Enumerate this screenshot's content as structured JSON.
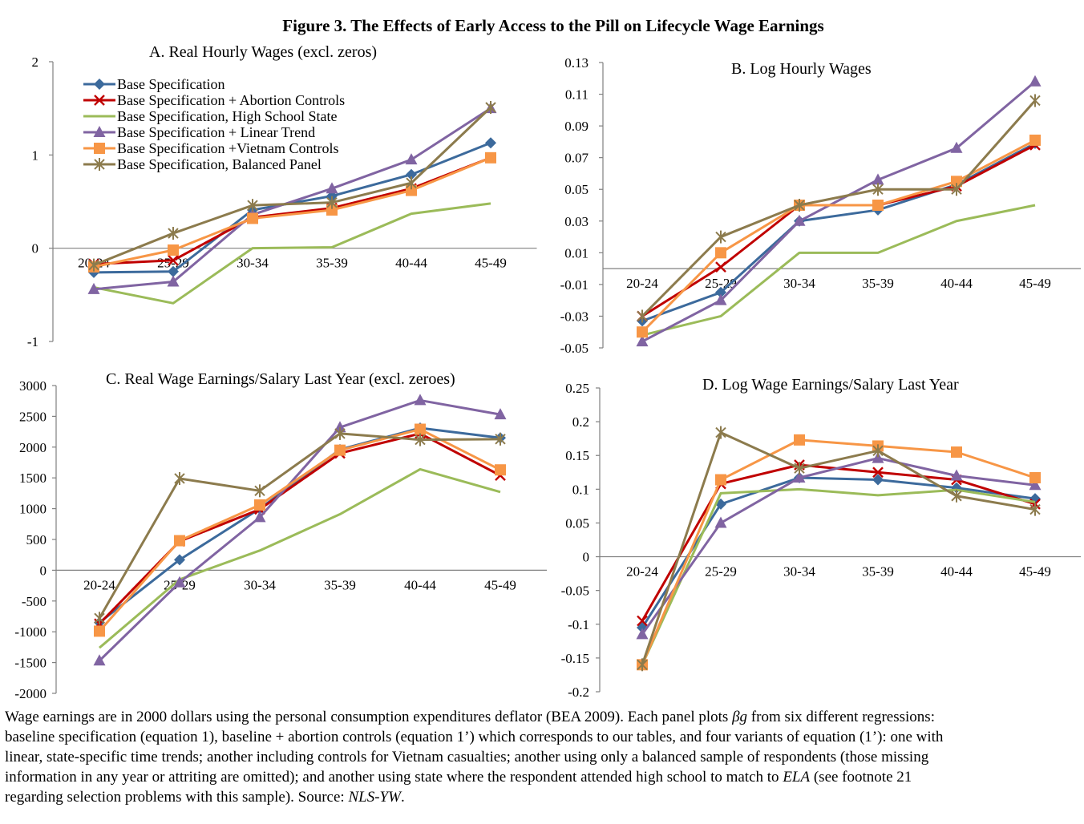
{
  "figure_title": "Figure 3. The Effects of Early Access to the Pill on Lifecycle Wage Earnings",
  "series_styles": [
    {
      "color": "#3c6a9c",
      "marker": "diamond"
    },
    {
      "color": "#c00000",
      "marker": "x"
    },
    {
      "color": "#9bbb59",
      "marker": "none"
    },
    {
      "color": "#8064a2",
      "marker": "triangle"
    },
    {
      "color": "#f79646",
      "marker": "square"
    },
    {
      "color": "#8c7b4d",
      "marker": "star"
    }
  ],
  "chart_data": [
    {
      "type": "line",
      "title": "A.  Real Hourly Wages (excl. zeros)",
      "categories": [
        "20-24",
        "25-29",
        "30-34",
        "35-39",
        "40-44",
        "45-49"
      ],
      "ylim": [
        -1,
        2
      ],
      "yticks": [
        -1,
        0,
        1,
        2
      ],
      "ytick_labels": [
        "-1",
        "0",
        "1",
        "2"
      ],
      "legend": "top-left",
      "grid": false,
      "series": [
        {
          "name": "Base Specification",
          "values": [
            -0.26,
            -0.25,
            0.41,
            0.56,
            0.79,
            1.13
          ]
        },
        {
          "name": "Base Specification + Abortion Controls",
          "values": [
            -0.17,
            -0.13,
            0.33,
            0.43,
            0.64,
            0.97
          ]
        },
        {
          "name": "Base Specification, High School State",
          "values": [
            -0.42,
            -0.59,
            0.0,
            0.01,
            0.37,
            0.48
          ]
        },
        {
          "name": "Base Specification + Linear Trend",
          "values": [
            -0.44,
            -0.36,
            0.36,
            0.64,
            0.95,
            1.5
          ]
        },
        {
          "name": "Base Specification +Vietnam Controls",
          "values": [
            -0.2,
            -0.02,
            0.32,
            0.41,
            0.62,
            0.97
          ]
        },
        {
          "name": "Base Specification, Balanced Panel",
          "values": [
            -0.18,
            0.16,
            0.46,
            0.49,
            0.7,
            1.51
          ]
        }
      ]
    },
    {
      "type": "line",
      "title": "B.  Log Hourly Wages",
      "categories": [
        "20-24",
        "25-29",
        "30-34",
        "35-39",
        "40-44",
        "45-49"
      ],
      "ylim": [
        -0.05,
        0.13
      ],
      "yticks": [
        -0.05,
        -0.03,
        -0.01,
        0.01,
        0.03,
        0.05,
        0.07,
        0.09,
        0.11,
        0.13
      ],
      "ytick_labels": [
        "-0.05",
        "-0.03",
        "-0.01",
        "0.01",
        "0.03",
        "0.05",
        "0.07",
        "0.09",
        "0.11",
        "0.13"
      ],
      "grid": false,
      "series": [
        {
          "values": [
            -0.033,
            -0.015,
            0.03,
            0.037,
            0.053,
            0.079
          ]
        },
        {
          "values": [
            -0.03,
            0.001,
            0.04,
            0.04,
            0.052,
            0.078
          ]
        },
        {
          "values": [
            -0.042,
            -0.03,
            0.01,
            0.01,
            0.03,
            0.04
          ]
        },
        {
          "values": [
            -0.046,
            -0.02,
            0.03,
            0.056,
            0.076,
            0.118
          ]
        },
        {
          "values": [
            -0.04,
            0.01,
            0.04,
            0.04,
            0.055,
            0.081
          ]
        },
        {
          "values": [
            -0.03,
            0.02,
            0.04,
            0.05,
            0.05,
            0.106
          ]
        }
      ]
    },
    {
      "type": "line",
      "title": "C.  Real Wage Earnings/Salary Last Year (excl. zeroes)",
      "categories": [
        "20-24",
        "25-29",
        "30-34",
        "35-39",
        "40-44",
        "45-49"
      ],
      "ylim": [
        -2000,
        3000
      ],
      "yticks": [
        -2000,
        -1500,
        -1000,
        -500,
        0,
        500,
        1000,
        1500,
        2000,
        2500,
        3000
      ],
      "ytick_labels": [
        "-2000",
        "-1500",
        "-1000",
        "-500",
        "0",
        "500",
        "1000",
        "1500",
        "2000",
        "2500",
        "3000"
      ],
      "grid": false,
      "series": [
        {
          "values": [
            -850,
            170,
            1000,
            1960,
            2310,
            2150
          ]
        },
        {
          "values": [
            -870,
            470,
            990,
            1900,
            2220,
            1540
          ]
        },
        {
          "values": [
            -1260,
            -150,
            320,
            910,
            1640,
            1270
          ]
        },
        {
          "values": [
            -1470,
            -200,
            860,
            2320,
            2760,
            2530
          ]
        },
        {
          "values": [
            -990,
            480,
            1060,
            1950,
            2290,
            1630
          ]
        },
        {
          "values": [
            -780,
            1490,
            1290,
            2220,
            2120,
            2130
          ]
        }
      ]
    },
    {
      "type": "line",
      "title": "D.  Log Wage Earnings/Salary Last Year",
      "categories": [
        "20-24",
        "25-29",
        "30-34",
        "35-39",
        "40-44",
        "45-49"
      ],
      "ylim": [
        -0.2,
        0.25
      ],
      "yticks": [
        -0.2,
        -0.15,
        -0.1,
        -0.05,
        0,
        0.05,
        0.1,
        0.15,
        0.2,
        0.25
      ],
      "ytick_labels": [
        "-0.2",
        "-0.15",
        "-0.1",
        "-0.05",
        "0",
        "0.05",
        "0.1",
        "0.15",
        "0.2",
        "0.25"
      ],
      "grid": false,
      "series": [
        {
          "values": [
            -0.105,
            0.078,
            0.117,
            0.114,
            0.102,
            0.086
          ]
        },
        {
          "values": [
            -0.095,
            0.108,
            0.136,
            0.125,
            0.114,
            0.078
          ]
        },
        {
          "values": [
            -0.16,
            0.094,
            0.1,
            0.091,
            0.099,
            0.081
          ]
        },
        {
          "values": [
            -0.115,
            0.05,
            0.117,
            0.146,
            0.12,
            0.106
          ]
        },
        {
          "values": [
            -0.16,
            0.114,
            0.173,
            0.164,
            0.155,
            0.117
          ]
        },
        {
          "values": [
            -0.16,
            0.184,
            0.131,
            0.157,
            0.09,
            0.07
          ]
        }
      ]
    }
  ],
  "caption": {
    "line1_a": "Wage earnings are in 2000 dollars using the personal consumption expenditures deflator (BEA 2009). Each panel plots ",
    "beta": "βg",
    "line1_b": " from six different regressions:",
    "line2": "baseline specification (equation 1), baseline + abortion controls (equation 1’) which corresponds to our tables, and four variants of equation (1’): one with",
    "line3": "linear, state-specific time trends; another including controls for Vietnam casualties; another using only a balanced sample of respondents (those missing",
    "line4_a": "information in any year or attriting are omitted); and another using state where the respondent attended high school to match to ",
    "line4_ela": "ELA",
    "line4_b": " (see footnote 21",
    "line5_a": "regarding selection problems with this sample). Source: ",
    "line5_src": "NLS-YW",
    "line5_b": "."
  }
}
